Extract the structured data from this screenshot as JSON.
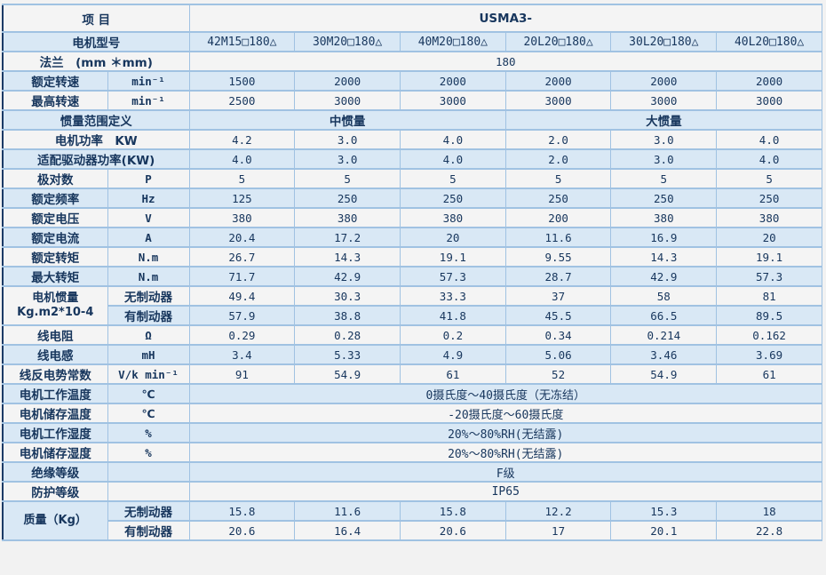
{
  "colors": {
    "row_white": "#f4f4f4",
    "row_blue": "#d9e8f5",
    "border": "#a0c2e2",
    "outer_left": "#1b3a66",
    "text": "#17365d",
    "page_bg": "#f2f2f2"
  },
  "table": {
    "item_header": "项 目",
    "series_header": "USMA3-",
    "rows": [
      {
        "kind": "model",
        "label": "电机型号",
        "values": [
          "42M15□180△",
          "30M20□180△",
          "40M20□180△",
          "20L20□180△",
          "30L20□180△",
          "40L20□180△"
        ]
      },
      {
        "kind": "wide",
        "label": "法兰　(mm ＊mm)",
        "value": "180"
      },
      {
        "kind": "data",
        "label": "额定转速",
        "unit": "min⁻¹",
        "values": [
          "1500",
          "2000",
          "2000",
          "2000",
          "2000",
          "2000"
        ]
      },
      {
        "kind": "data",
        "label": "最高转速",
        "unit": "min⁻¹",
        "values": [
          "2500",
          "3000",
          "3000",
          "3000",
          "3000",
          "3000"
        ]
      },
      {
        "kind": "split",
        "label": "惯量范围定义",
        "left": "中惯量",
        "right": "大惯量"
      },
      {
        "kind": "labelwide",
        "label": "电机功率　KW",
        "values": [
          "4.2",
          "3.0",
          "4.0",
          "2.0",
          "3.0",
          "4.0"
        ]
      },
      {
        "kind": "labelwide",
        "label": "适配驱动器功率(KW)",
        "values": [
          "4.0",
          "3.0",
          "4.0",
          "2.0",
          "3.0",
          "4.0"
        ]
      },
      {
        "kind": "data",
        "label": "极对数",
        "unit": "P",
        "values": [
          "5",
          "5",
          "5",
          "5",
          "5",
          "5"
        ]
      },
      {
        "kind": "data",
        "label": "额定频率",
        "unit": "Hz",
        "values": [
          "125",
          "250",
          "250",
          "250",
          "250",
          "250"
        ]
      },
      {
        "kind": "data",
        "label": "额定电压",
        "unit": "V",
        "values": [
          "380",
          "380",
          "380",
          "200",
          "380",
          "380"
        ]
      },
      {
        "kind": "data",
        "label": "额定电流",
        "unit": "A",
        "values": [
          "20.4",
          "17.2",
          "20",
          "11.6",
          "16.9",
          "20"
        ]
      },
      {
        "kind": "data",
        "label": "额定转矩",
        "unit": "N.m",
        "values": [
          "26.7",
          "14.3",
          "19.1",
          "9.55",
          "14.3",
          "19.1"
        ]
      },
      {
        "kind": "data",
        "label": "最大转矩",
        "unit": "N.m",
        "values": [
          "71.7",
          "42.9",
          "57.3",
          "28.7",
          "42.9",
          "57.3"
        ]
      },
      {
        "kind": "group",
        "label": "电机惯量\nKg.m2*10-4",
        "subrows": [
          {
            "sub": "无制动器",
            "values": [
              "49.4",
              "30.3",
              "33.3",
              "37",
              "58",
              "81"
            ]
          },
          {
            "sub": "有制动器",
            "values": [
              "57.9",
              "38.8",
              "41.8",
              "45.5",
              "66.5",
              "89.5"
            ]
          }
        ]
      },
      {
        "kind": "data",
        "label": "线电阻",
        "unit": "Ω",
        "values": [
          "0.29",
          "0.28",
          "0.2",
          "0.34",
          "0.214",
          "0.162"
        ]
      },
      {
        "kind": "data",
        "label": "线电感",
        "unit": "mH",
        "values": [
          "3.4",
          "5.33",
          "4.9",
          "5.06",
          "3.46",
          "3.69"
        ]
      },
      {
        "kind": "data",
        "label": "线反电势常数",
        "unit": "V/k min⁻¹",
        "values": [
          "91",
          "54.9",
          "61",
          "52",
          "54.9",
          "61"
        ]
      },
      {
        "kind": "env",
        "label": "电机工作温度",
        "unit": "℃",
        "value": "0摄氏度～40摄氏度（无冻结）"
      },
      {
        "kind": "env",
        "label": "电机储存温度",
        "unit": "℃",
        "value": "-20摄氏度～60摄氏度"
      },
      {
        "kind": "env",
        "label": "电机工作湿度",
        "unit": "%",
        "value": "20%～80%RH(无结露)"
      },
      {
        "kind": "env",
        "label": "电机储存湿度",
        "unit": "%",
        "value": "20%～80%RH(无结露)"
      },
      {
        "kind": "env",
        "label": "绝缘等级",
        "unit": "",
        "value": "F级"
      },
      {
        "kind": "env",
        "label": "防护等级",
        "unit": "",
        "value": "IP65"
      },
      {
        "kind": "group",
        "label": "质量（Kg）",
        "subrows": [
          {
            "sub": "无制动器",
            "values": [
              "15.8",
              "11.6",
              "15.8",
              "12.2",
              "15.3",
              "18"
            ]
          },
          {
            "sub": "有制动器",
            "values": [
              "20.6",
              "16.4",
              "20.6",
              "17",
              "20.1",
              "22.8"
            ]
          }
        ]
      }
    ]
  }
}
